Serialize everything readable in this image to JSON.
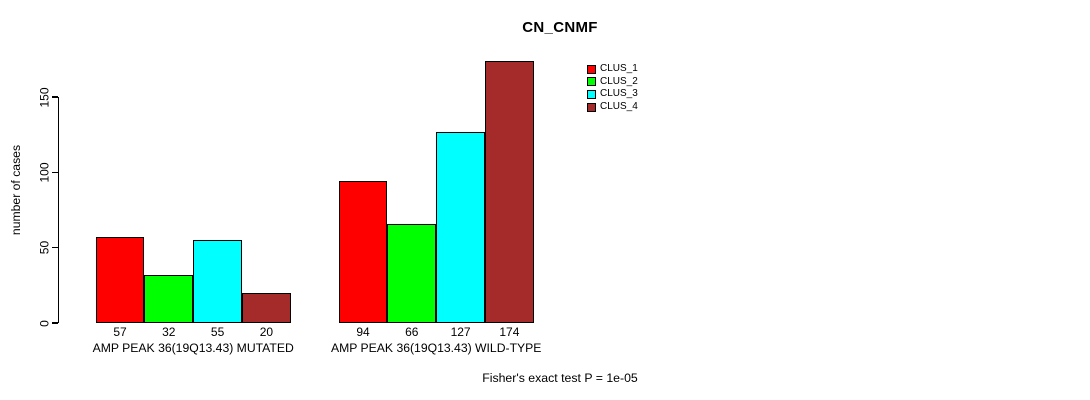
{
  "chart_data": {
    "type": "bar",
    "title": "CN_CNMF",
    "ylabel": "number of cases",
    "xlabel": "",
    "ylim": [
      0,
      175
    ],
    "yticks": [
      0,
      50,
      100,
      150
    ],
    "grid": false,
    "legend_position": "top-right",
    "categories": [
      "AMP PEAK 36(19Q13.43) MUTATED",
      "AMP PEAK 36(19Q13.43) WILD-TYPE"
    ],
    "series": [
      {
        "name": "CLUS_1",
        "color": "#ff0000",
        "values": [
          57,
          94
        ]
      },
      {
        "name": "CLUS_2",
        "color": "#00ff00",
        "values": [
          32,
          66
        ]
      },
      {
        "name": "CLUS_3",
        "color": "#00ffff",
        "values": [
          55,
          127
        ]
      },
      {
        "name": "CLUS_4",
        "color": "#a52a2a",
        "values": [
          20,
          174
        ]
      }
    ],
    "bar_value_labels_visible": true,
    "annotation": "Fisher's exact test P = 1e-05"
  }
}
